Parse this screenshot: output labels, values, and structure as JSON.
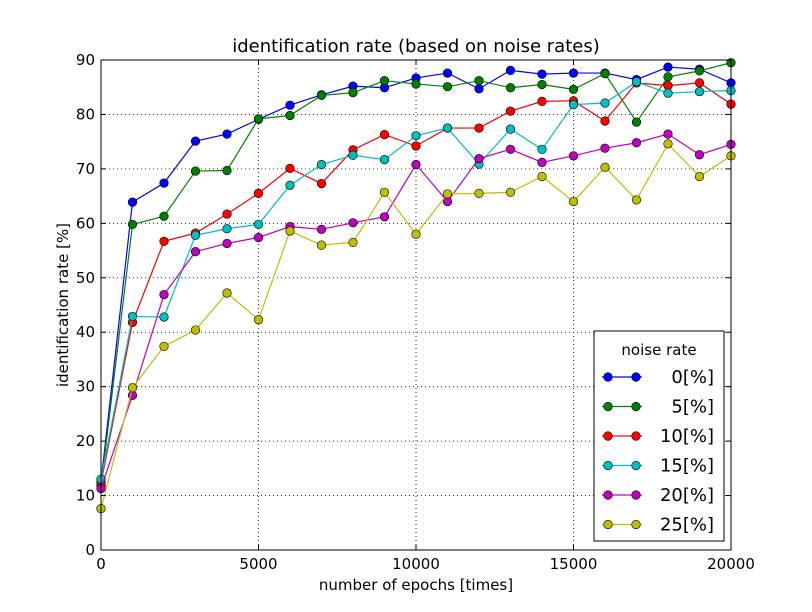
{
  "chart_data": {
    "type": "line",
    "title": "identification rate (based on noise rates)",
    "xlabel": "number of epochs [times]",
    "ylabel": "identification rate [%]",
    "xlim": [
      0,
      20000
    ],
    "ylim": [
      0,
      90
    ],
    "xticks": [
      "0",
      "5000",
      "10000",
      "15000",
      "20000"
    ],
    "yticks": [
      "0",
      "10",
      "20",
      "30",
      "40",
      "50",
      "60",
      "70",
      "80",
      "90"
    ],
    "grid": true,
    "legend": {
      "title": "noise rate",
      "placement": "lower-right"
    },
    "x": [
      0,
      1000,
      2000,
      3000,
      4000,
      5000,
      6000,
      7000,
      8000,
      9000,
      10000,
      11000,
      12000,
      13000,
      14000,
      15000,
      16000,
      17000,
      18000,
      19000,
      20000
    ],
    "series": [
      {
        "name": "0[%]",
        "color": "#0000ff",
        "values": [
          12.5,
          63.9,
          67.4,
          75.1,
          76.4,
          79.1,
          81.7,
          83.6,
          85.2,
          84.9,
          86.7,
          87.6,
          84.7,
          88.1,
          87.4,
          87.6,
          87.6,
          86.4,
          88.7,
          88.3,
          85.8
        ]
      },
      {
        "name": "5[%]",
        "color": "#008000",
        "values": [
          11.8,
          59.8,
          61.3,
          69.6,
          69.7,
          79.2,
          79.8,
          83.5,
          84.0,
          86.2,
          85.6,
          85.1,
          86.2,
          84.9,
          85.5,
          84.6,
          87.5,
          78.6,
          86.9,
          88.0,
          89.5
        ]
      },
      {
        "name": "10[%]",
        "color": "#ff0000",
        "values": [
          12.3,
          41.8,
          56.7,
          58.2,
          61.7,
          65.5,
          70.1,
          67.3,
          73.5,
          76.3,
          74.2,
          77.5,
          77.5,
          80.6,
          82.4,
          82.5,
          78.8,
          85.8,
          85.3,
          85.8,
          81.9
        ]
      },
      {
        "name": "15[%]",
        "color": "#00bfbf",
        "values": [
          13.0,
          42.9,
          42.8,
          57.8,
          59.0,
          59.8,
          67.0,
          70.8,
          72.5,
          71.7,
          76.1,
          77.5,
          70.9,
          77.3,
          73.6,
          81.8,
          82.1,
          86.0,
          83.9,
          84.2,
          84.4
        ]
      },
      {
        "name": "20[%]",
        "color": "#bf00bf",
        "values": [
          11.3,
          28.4,
          46.9,
          54.8,
          56.3,
          57.4,
          59.4,
          58.9,
          60.1,
          61.2,
          70.8,
          64.0,
          71.9,
          73.6,
          71.2,
          72.4,
          73.8,
          74.8,
          76.4,
          72.6,
          74.5
        ]
      },
      {
        "name": "25[%]",
        "color": "#bfbf00",
        "values": [
          7.6,
          29.8,
          37.4,
          40.4,
          47.2,
          42.3,
          58.6,
          56.0,
          56.5,
          65.7,
          58.0,
          65.4,
          65.5,
          65.7,
          68.6,
          64.0,
          70.3,
          64.3,
          74.6,
          68.6,
          72.4
        ]
      }
    ]
  }
}
